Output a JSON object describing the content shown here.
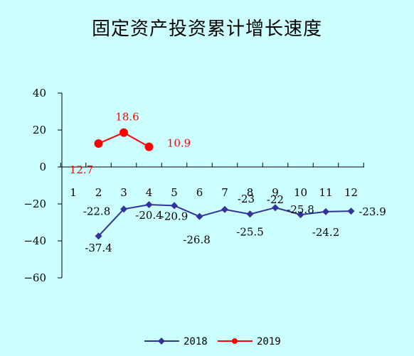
{
  "chart_data": {
    "type": "line",
    "title": "固定资产投资累计增长速度",
    "xlabel": "",
    "ylabel": "",
    "categories": [
      "1",
      "2",
      "3",
      "4",
      "5",
      "6",
      "7",
      "8",
      "9",
      "10",
      "11",
      "12"
    ],
    "ylim": [
      -60,
      40
    ],
    "yticks": [
      "40",
      "20",
      "0",
      "−20",
      "−40",
      "−60"
    ],
    "ytick_values": [
      40,
      20,
      0,
      -20,
      -40,
      -60
    ],
    "grid": false,
    "legend_position": "bottom",
    "series": [
      {
        "name": "2018",
        "color": "#333399",
        "marker": "diamond",
        "values": [
          null,
          -37.4,
          -22.8,
          -20.4,
          -20.9,
          -26.8,
          -23,
          -25.5,
          -22,
          -25.8,
          -24.2,
          -23.9
        ],
        "labels": [
          "",
          "-37.4",
          "-22.8",
          "-20.4",
          "-20.9",
          "-26.8",
          "-23",
          "-25.5",
          "-22",
          "-25.8",
          "-24.2",
          "-23.9"
        ]
      },
      {
        "name": "2019",
        "color": "#ff0000",
        "marker": "circle",
        "values": [
          null,
          12.7,
          18.6,
          10.9,
          null,
          null,
          null,
          null,
          null,
          null,
          null,
          null
        ],
        "labels": [
          "",
          "12.7",
          "18.6",
          "10.9",
          "",
          "",
          "",
          "",
          "",
          "",
          "",
          ""
        ]
      }
    ]
  }
}
